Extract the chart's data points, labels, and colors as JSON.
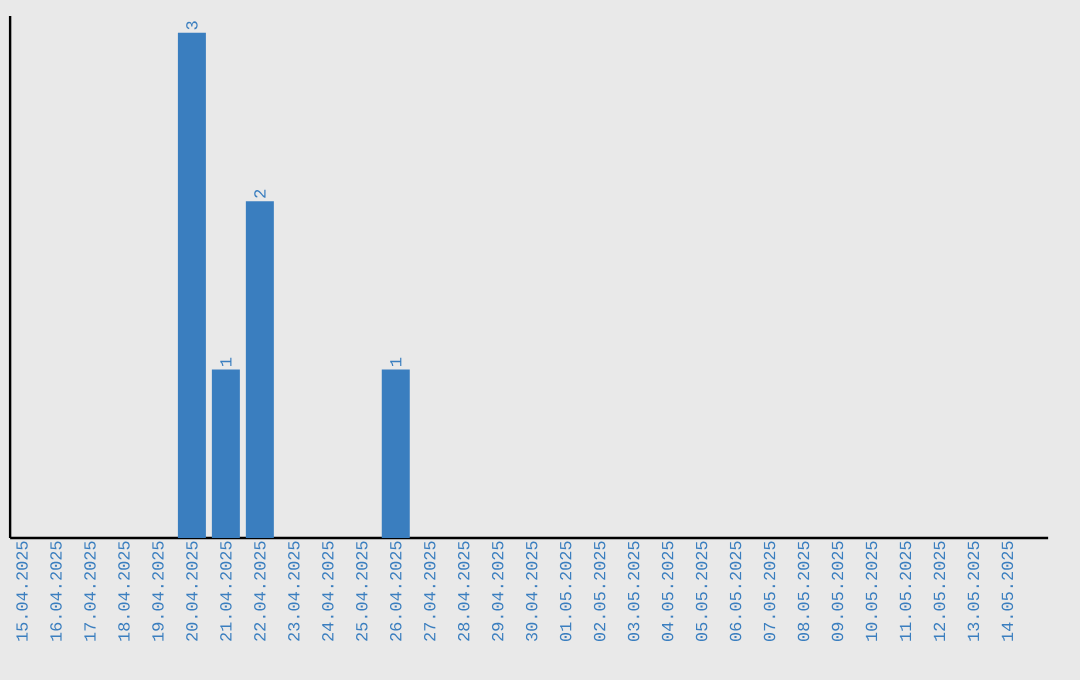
{
  "chart_data": {
    "type": "bar",
    "categories": [
      "15.04.2025",
      "16.04.2025",
      "17.04.2025",
      "18.04.2025",
      "19.04.2025",
      "20.04.2025",
      "21.04.2025",
      "22.04.2025",
      "23.04.2025",
      "24.04.2025",
      "25.04.2025",
      "26.04.2025",
      "27.04.2025",
      "28.04.2025",
      "29.04.2025",
      "30.04.2025",
      "01.05.2025",
      "02.05.2025",
      "03.05.2025",
      "04.05.2025",
      "05.05.2025",
      "06.05.2025",
      "07.05.2025",
      "08.05.2025",
      "09.05.2025",
      "10.05.2025",
      "11.05.2025",
      "12.05.2025",
      "13.05.2025",
      "14.05.2025"
    ],
    "values": [
      0,
      0,
      0,
      0,
      0,
      3,
      1,
      2,
      0,
      0,
      0,
      1,
      0,
      0,
      0,
      0,
      0,
      0,
      0,
      0,
      0,
      0,
      0,
      0,
      0,
      0,
      0,
      0,
      0,
      0
    ],
    "value_labels": [
      null,
      null,
      null,
      null,
      null,
      "3",
      "1",
      "2",
      null,
      null,
      null,
      "1",
      null,
      null,
      null,
      null,
      null,
      null,
      null,
      null,
      null,
      null,
      null,
      null,
      null,
      null,
      null,
      null,
      null,
      null
    ],
    "color": "#3a7ebf",
    "ylim": [
      0,
      3.1
    ],
    "tick_labels": "x",
    "grid": false
  }
}
